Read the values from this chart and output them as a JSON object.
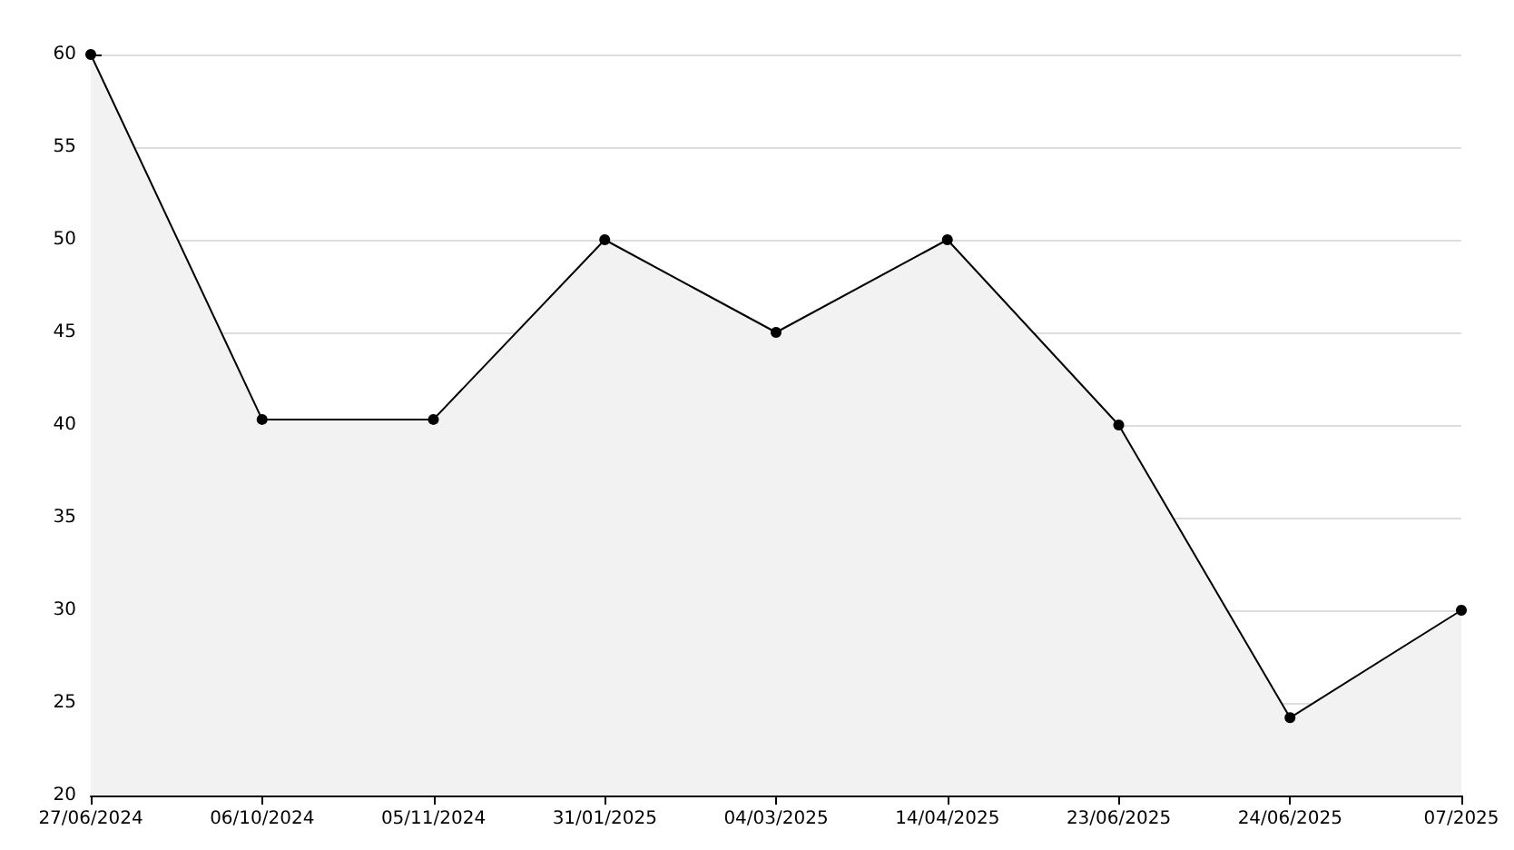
{
  "chart_data": {
    "type": "area",
    "categories": [
      "27/06/2024",
      "06/10/2024",
      "05/11/2024",
      "31/01/2025",
      "04/03/2025",
      "14/04/2025",
      "23/06/2025",
      "24/06/2025",
      "07/2025"
    ],
    "values": [
      60,
      40.3,
      40.3,
      50,
      45,
      50,
      40,
      24.2,
      30
    ],
    "color": "#000000",
    "ylim": [
      20,
      60
    ],
    "yticks": [
      20,
      25,
      30,
      35,
      40,
      45,
      50,
      55,
      60
    ],
    "grid": "y",
    "marker": "circle"
  }
}
